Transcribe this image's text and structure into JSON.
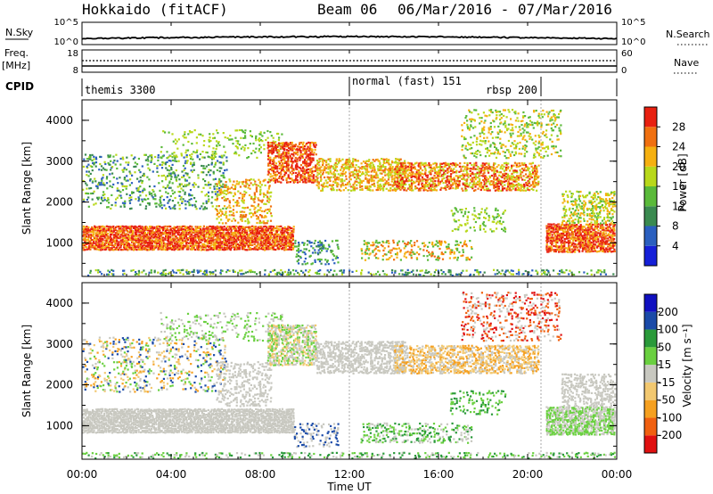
{
  "header": {
    "title": "Hokkaido (fitACF)",
    "beam": "Beam 06",
    "date_range": "06/Mar/2016 - 07/Mar/2016"
  },
  "strips": {
    "nsky": {
      "label": "N.Sky",
      "ticks": [
        "10^5",
        "10^0"
      ]
    },
    "nsearch": {
      "label": "N.Search",
      "ticks": [
        "10^5",
        "10^0"
      ]
    },
    "freq": {
      "label_top": "Freq.",
      "label_unit": "[MHz]",
      "ticks": [
        "18",
        "8"
      ]
    },
    "nave": {
      "label": "Nave",
      "ticks": [
        "60",
        "0"
      ]
    },
    "cpid": {
      "label": "CPID",
      "segments": [
        "themis 3300",
        "normal (fast) 151",
        "rbsp 200"
      ],
      "boundaries_hours": [
        12.0,
        20.6
      ]
    }
  },
  "colors": {
    "power": [
      "#1520d8",
      "#2a5fbf",
      "#3a8a50",
      "#5aba3a",
      "#b8d81a",
      "#f5b010",
      "#f07010",
      "#e82010"
    ],
    "velocity": [
      "#e01010",
      "#f06010",
      "#f5a020",
      "#f2c870",
      "#c8c8c0",
      "#6ad040",
      "#2a9a3a",
      "#1a4aa8",
      "#1010c0"
    ]
  },
  "chart_data": [
    {
      "type": "heatmap",
      "name": "power",
      "ylabel": "Slant Range [km]",
      "x_range_hours": [
        0,
        24
      ],
      "ylim": [
        180,
        4500
      ],
      "yticks": [
        1000,
        2000,
        3000,
        4000
      ],
      "colorbar": {
        "label": "Power [dB]",
        "ticks": [
          4,
          8,
          12,
          16,
          20,
          24,
          28
        ],
        "range": [
          0,
          32
        ]
      }
    },
    {
      "type": "heatmap",
      "name": "velocity",
      "ylabel": "Slant Range [km]",
      "x_range_hours": [
        0,
        24
      ],
      "ylim": [
        180,
        4500
      ],
      "yticks": [
        1000,
        2000,
        3000,
        4000
      ],
      "colorbar": {
        "label": "Velocity [m s⁻¹]",
        "ticks": [
          -200,
          -100,
          -50,
          -15,
          15,
          50,
          100,
          200
        ]
      }
    }
  ],
  "xaxis": {
    "label": "Time UT",
    "ticks": [
      "00:00",
      "04:00",
      "08:00",
      "12:00",
      "16:00",
      "20:00",
      "00:00"
    ],
    "tick_hours": [
      0,
      4,
      8,
      12,
      16,
      20,
      24
    ]
  }
}
